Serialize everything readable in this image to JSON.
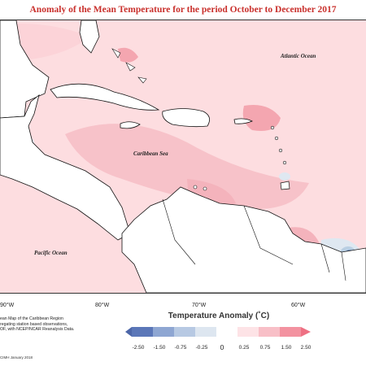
{
  "title": "Anomaly of the Mean Temperature for the period October to December 2017",
  "map": {
    "labels": {
      "atlantic": "Atlantic Ocean",
      "caribbean": "Caribbean Sea",
      "pacific": "Pacific Ocean"
    },
    "longitude_ticks": [
      "90°W",
      "80°W",
      "70°W",
      "60°W"
    ],
    "colors": {
      "ocean_warm": "#fddde0",
      "anomaly_warm_strong": "#f4a6b0",
      "anomaly_cool": "#b9cfe3",
      "anomaly_cool_strong": "#6f8fbf",
      "land": "#ffffff",
      "coast": "#111111"
    }
  },
  "legend": {
    "title": "Temperature Anomaly (˚C)",
    "labels": [
      "-2.50",
      "-1.50",
      "-0.75",
      "-0.25",
      "0",
      "0.25",
      "0.75",
      "1.50",
      "2.50"
    ],
    "colors": [
      "#5b77b8",
      "#8ea6d2",
      "#b7c9e3",
      "#dde6f0",
      "#ffffff",
      "#fde3e6",
      "#f8bfc7",
      "#f392a0"
    ]
  },
  "credit": {
    "line1": "ean Map of the Caribbean Region",
    "line2": "regating station based observations,",
    "line3": "OF, with NCEP/NCAR Reanalysis Data."
  },
  "footer": "CIMH January 2018"
}
